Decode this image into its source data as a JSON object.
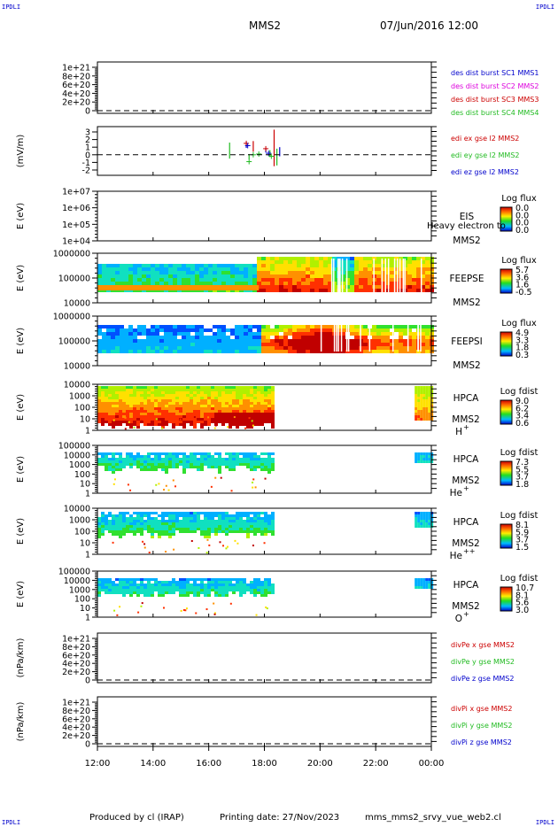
{
  "header": {
    "corner_left": "IPDLI",
    "corner_right": "IPDLI",
    "mission": "MMS2",
    "datetime": "07/Jun/2016 12:00"
  },
  "footer": {
    "producer": "Produced by cl (IRAP)",
    "printing_date": "Printing date: 27/Nov/2023",
    "file": "mms_mms2_srvy_vue_web2.cl",
    "corner_left": "IPDLI",
    "corner_right": "IPDLI"
  },
  "chart_data": {
    "type": "stacked-timeseries",
    "x_ticks": [
      "12:00",
      "14:00",
      "16:00",
      "18:00",
      "20:00",
      "22:00",
      "00:00"
    ],
    "panels": [
      {
        "id": "des",
        "kind": "line",
        "ylabel": "",
        "yticks": [
          "1e+21",
          "8e+20",
          "6e+20",
          "4e+20",
          "2e+20",
          "0"
        ],
        "legend": [
          {
            "text": "des dist burst SC1 MMS1",
            "color": "#0000cc"
          },
          {
            "text": "des dist burst SC2 MMS2",
            "color": "#dd00dd"
          },
          {
            "text": "des dist burst SC3 MMS3",
            "color": "#cc0000"
          },
          {
            "text": "des dist burst SC4 MMS4",
            "color": "#22bb22"
          }
        ]
      },
      {
        "id": "edi",
        "kind": "line",
        "ylabel": "(mV/m)",
        "yticks": [
          "3",
          "2",
          "1",
          "0",
          "-1",
          "-2"
        ],
        "yrange": [
          -2,
          3.5
        ],
        "legend": [
          {
            "text": "edi ex gse l2 MMS2",
            "color": "#cc0000"
          },
          {
            "text": "edi ey gse l2 MMS2",
            "color": "#22bb22"
          },
          {
            "text": "edi ez gse l2 MMS2",
            "color": "#0000cc"
          }
        ]
      },
      {
        "id": "eis",
        "kind": "spectrogram",
        "ylabel": "E (eV)",
        "yticks": [
          "1e+07",
          "1e+06",
          "1e+05",
          "1e+04"
        ],
        "labels": [
          "EIS",
          "MMS2"
        ],
        "overlay_text": "Heavy electron to",
        "colorbar": {
          "title": "Log flux",
          "ticks": [
            "0.0",
            "0.0",
            "0.0",
            "0.0"
          ]
        }
      },
      {
        "id": "feepse",
        "kind": "spectrogram",
        "ylabel": "E (eV)",
        "yticks": [
          "1000000",
          "100000",
          "10000"
        ],
        "labels": [
          "FEEPSE",
          "MMS2"
        ],
        "colorbar": {
          "title": "Log flux",
          "ticks": [
            "5.7",
            "3.6",
            "1.6",
            "-0.5"
          ]
        }
      },
      {
        "id": "feepsi",
        "kind": "spectrogram",
        "ylabel": "E (eV)",
        "yticks": [
          "1000000",
          "100000",
          "10000"
        ],
        "labels": [
          "FEEPSI",
          "MMS2"
        ],
        "colorbar": {
          "title": "Log flux",
          "ticks": [
            "4.9",
            "3.3",
            "1.8",
            "0.3"
          ]
        }
      },
      {
        "id": "hpca_h",
        "kind": "spectrogram",
        "ylabel": "E (eV)",
        "yticks": [
          "10000",
          "1000",
          "100",
          "10",
          "1"
        ],
        "labels": [
          "HPCA",
          "MMS2"
        ],
        "species": "H",
        "charge": "+",
        "colorbar": {
          "title": "Log fdist",
          "ticks": [
            "9.0",
            "6.2",
            "3.4",
            "0.6"
          ]
        }
      },
      {
        "id": "hpca_he",
        "kind": "spectrogram",
        "ylabel": "E (eV)",
        "yticks": [
          "100000",
          "10000",
          "1000",
          "100",
          "10",
          "1"
        ],
        "labels": [
          "HPCA",
          "MMS2"
        ],
        "species": "He",
        "charge": "+",
        "colorbar": {
          "title": "Log fdist",
          "ticks": [
            "7.3",
            "5.5",
            "3.7",
            "1.8"
          ]
        }
      },
      {
        "id": "hpca_hepp",
        "kind": "spectrogram",
        "ylabel": "E (eV)",
        "yticks": [
          "10000",
          "1000",
          "100",
          "10",
          "1"
        ],
        "labels": [
          "HPCA",
          "MMS2"
        ],
        "species": "He",
        "charge": "++",
        "colorbar": {
          "title": "Log fdist",
          "ticks": [
            "8.1",
            "5.9",
            "3.7",
            "1.5"
          ]
        }
      },
      {
        "id": "hpca_o",
        "kind": "spectrogram",
        "ylabel": "E (eV)",
        "yticks": [
          "100000",
          "10000",
          "1000",
          "100",
          "10",
          "1"
        ],
        "labels": [
          "HPCA",
          "MMS2"
        ],
        "species": "O",
        "charge": "+",
        "colorbar": {
          "title": "Log fdist",
          "ticks": [
            "10.7",
            "8.1",
            "5.6",
            "3.0"
          ]
        }
      },
      {
        "id": "divpe",
        "kind": "line",
        "ylabel": "(nPa/km)",
        "yticks": [
          "1e+21",
          "8e+20",
          "6e+20",
          "4e+20",
          "2e+20",
          "0"
        ],
        "legend": [
          {
            "text": "divPe x gse MMS2",
            "color": "#cc0000"
          },
          {
            "text": "divPe y gse MMS2",
            "color": "#22bb22"
          },
          {
            "text": "divPe z gse MMS2",
            "color": "#0000cc"
          }
        ]
      },
      {
        "id": "divpi",
        "kind": "line",
        "ylabel": "(nPa/km)",
        "yticks": [
          "1e+21",
          "8e+20",
          "6e+20",
          "4e+20",
          "2e+20",
          "0"
        ],
        "legend": [
          {
            "text": "divPi x gse MMS2",
            "color": "#cc0000"
          },
          {
            "text": "divPi y gse MMS2",
            "color": "#22bb22"
          },
          {
            "text": "divPi z gse MMS2",
            "color": "#0000cc"
          }
        ]
      }
    ]
  }
}
